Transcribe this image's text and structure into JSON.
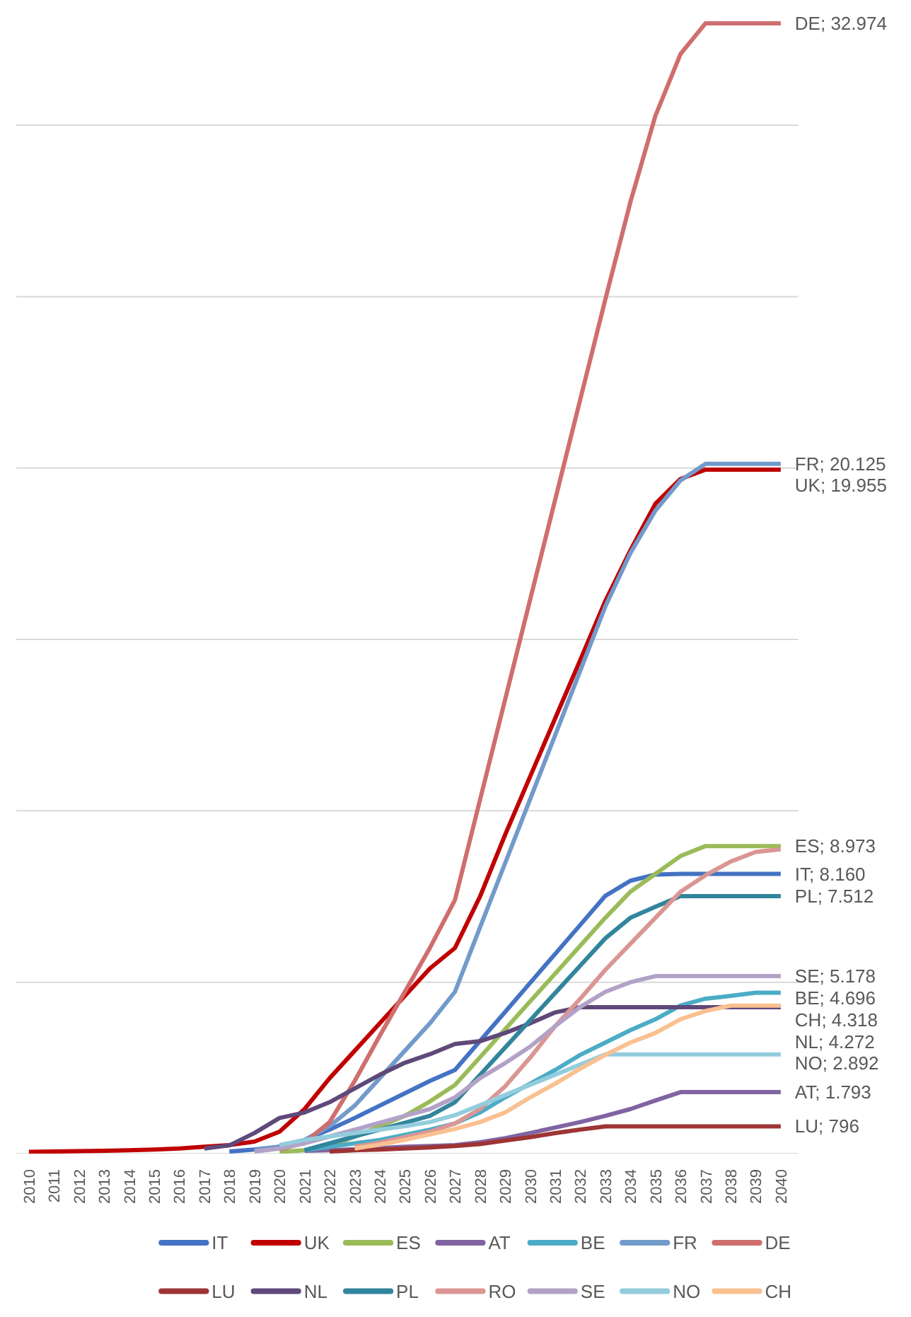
{
  "chart_data": {
    "type": "line",
    "categories": [
      "2010",
      "2011",
      "2012",
      "2013",
      "2014",
      "2015",
      "2016",
      "2017",
      "2018",
      "2019",
      "2020",
      "2021",
      "2022",
      "2023",
      "2024",
      "2025",
      "2026",
      "2027",
      "2028",
      "2029",
      "2030",
      "2031",
      "2032",
      "2033",
      "2034",
      "2035",
      "2036",
      "2037",
      "2038",
      "2039",
      "2040"
    ],
    "yticks": [
      {
        "value": 0,
        "label": null
      },
      {
        "value": 5000,
        "label": null
      },
      {
        "value": 10000,
        "label": null
      },
      {
        "value": 15000,
        "label": null
      },
      {
        "value": 20000,
        "label": null
      },
      {
        "value": 25000,
        "label": null
      },
      {
        "value": 30000,
        "label": null
      }
    ],
    "tick_labels": "x",
    "grid": "y",
    "legend": "bottom",
    "marker": "none",
    "line_style": "solid",
    "series": [
      {
        "name": "IT",
        "color": "#4472c4",
        "values": [
          null,
          null,
          null,
          null,
          null,
          null,
          null,
          null,
          60,
          120,
          200,
          400,
          700,
          1040,
          1400,
          1760,
          2120,
          2440,
          3287,
          4133,
          4980,
          5827,
          6673,
          7520,
          7960,
          8140,
          8160,
          8160,
          8160,
          8160,
          8160
        ],
        "value_labels": [
          null,
          null,
          null,
          null,
          null,
          null,
          null,
          null,
          null,
          null,
          null,
          null,
          null,
          null,
          null,
          null,
          null,
          null,
          null,
          null,
          null,
          null,
          null,
          null,
          null,
          null,
          null,
          null,
          null,
          null,
          "IT; 8.160"
        ]
      },
      {
        "name": "UK",
        "color": "#c00000",
        "values": [
          50,
          60,
          70,
          80,
          100,
          120,
          150,
          200,
          250,
          350,
          640,
          1300,
          2200,
          3000,
          3800,
          4600,
          5400,
          6000,
          7500,
          9300,
          11000,
          12700,
          14400,
          16120,
          17600,
          18960,
          19680,
          19955,
          19955,
          19955,
          19955
        ],
        "value_labels": [
          null,
          null,
          null,
          null,
          null,
          null,
          null,
          null,
          null,
          null,
          null,
          null,
          null,
          null,
          null,
          null,
          null,
          null,
          null,
          null,
          null,
          null,
          null,
          null,
          null,
          null,
          null,
          null,
          null,
          null,
          "UK; 19.955"
        ]
      },
      {
        "name": "ES",
        "color": "#9bbb59",
        "values": [
          null,
          null,
          null,
          null,
          null,
          null,
          null,
          null,
          null,
          null,
          50,
          100,
          200,
          500,
          800,
          1100,
          1520,
          2000,
          2813,
          3627,
          4440,
          5253,
          6067,
          6880,
          7640,
          8160,
          8680,
          8973,
          8973,
          8973,
          8973
        ],
        "value_labels": [
          null,
          null,
          null,
          null,
          null,
          null,
          null,
          null,
          null,
          null,
          null,
          null,
          null,
          null,
          null,
          null,
          null,
          null,
          null,
          null,
          null,
          null,
          null,
          null,
          null,
          null,
          null,
          null,
          null,
          null,
          "ES; 8.973"
        ]
      },
      {
        "name": "AT",
        "color": "#8064a2",
        "values": [
          null,
          null,
          null,
          null,
          null,
          null,
          null,
          null,
          null,
          null,
          null,
          80,
          100,
          130,
          160,
          200,
          220,
          250,
          330,
          450,
          600,
          760,
          920,
          1100,
          1300,
          1550,
          1793,
          1793,
          1793,
          1793,
          1793
        ],
        "value_labels": [
          null,
          null,
          null,
          null,
          null,
          null,
          null,
          null,
          null,
          null,
          null,
          null,
          null,
          null,
          null,
          null,
          null,
          null,
          null,
          null,
          null,
          null,
          null,
          null,
          null,
          null,
          null,
          null,
          null,
          null,
          "AT; 1.793"
        ]
      },
      {
        "name": "BE",
        "color": "#4bacc6",
        "values": [
          null,
          null,
          null,
          null,
          null,
          null,
          null,
          null,
          null,
          null,
          null,
          100,
          200,
          300,
          400,
          550,
          700,
          880,
          1200,
          1640,
          2040,
          2440,
          2880,
          3240,
          3600,
          3920,
          4320,
          4520,
          4600,
          4696,
          4696
        ],
        "value_labels": [
          null,
          null,
          null,
          null,
          null,
          null,
          null,
          null,
          null,
          null,
          null,
          null,
          null,
          null,
          null,
          null,
          null,
          null,
          null,
          null,
          null,
          null,
          null,
          null,
          null,
          null,
          null,
          null,
          null,
          null,
          "BE; 4.696"
        ]
      },
      {
        "name": "FR",
        "color": "#729aca",
        "values": [
          null,
          null,
          null,
          null,
          null,
          null,
          null,
          null,
          null,
          100,
          200,
          400,
          800,
          1400,
          2200,
          3000,
          3800,
          4720,
          6600,
          8470,
          10340,
          12210,
          14090,
          15960,
          17520,
          18760,
          19640,
          20125,
          20125,
          20125,
          20125
        ],
        "value_labels": [
          null,
          null,
          null,
          null,
          null,
          null,
          null,
          null,
          null,
          null,
          null,
          null,
          null,
          null,
          null,
          null,
          null,
          null,
          null,
          null,
          null,
          null,
          null,
          null,
          null,
          null,
          null,
          null,
          null,
          null,
          "FR; 20.125"
        ]
      },
      {
        "name": "DE",
        "color": "#cf6e6e",
        "values": [
          null,
          null,
          null,
          null,
          null,
          null,
          null,
          null,
          null,
          null,
          120,
          320,
          920,
          2120,
          3440,
          4720,
          6000,
          7400,
          10320,
          13240,
          16160,
          19080,
          22000,
          24920,
          27760,
          30280,
          32080,
          32974,
          32974,
          32974,
          32974
        ],
        "value_labels": [
          null,
          null,
          null,
          null,
          null,
          null,
          null,
          null,
          null,
          null,
          null,
          null,
          null,
          null,
          null,
          null,
          null,
          null,
          null,
          null,
          null,
          null,
          null,
          null,
          null,
          null,
          null,
          null,
          null,
          null,
          "DE; 32.974"
        ]
      },
      {
        "name": "LU",
        "color": "#9e3434",
        "values": [
          null,
          null,
          null,
          null,
          null,
          null,
          null,
          null,
          null,
          null,
          null,
          null,
          60,
          100,
          120,
          150,
          180,
          220,
          280,
          380,
          480,
          600,
          700,
          796,
          796,
          796,
          796,
          796,
          796,
          796,
          796
        ],
        "value_labels": [
          null,
          null,
          null,
          null,
          null,
          null,
          null,
          null,
          null,
          null,
          null,
          null,
          null,
          null,
          null,
          null,
          null,
          null,
          null,
          null,
          null,
          null,
          null,
          null,
          null,
          null,
          null,
          null,
          null,
          null,
          "LU; 796"
        ]
      },
      {
        "name": "NL",
        "color": "#5f497a",
        "values": [
          null,
          null,
          null,
          null,
          null,
          null,
          null,
          150,
          240,
          600,
          1040,
          1200,
          1500,
          1900,
          2300,
          2650,
          2900,
          3200,
          3280,
          3520,
          3800,
          4120,
          4272,
          4272,
          4272,
          4272,
          4272,
          4272,
          4272,
          4272,
          4272
        ],
        "value_labels": [
          null,
          null,
          null,
          null,
          null,
          null,
          null,
          null,
          null,
          null,
          null,
          null,
          null,
          null,
          null,
          null,
          null,
          null,
          null,
          null,
          null,
          null,
          null,
          null,
          null,
          null,
          null,
          null,
          null,
          null,
          "NL; 4.272"
        ]
      },
      {
        "name": "PL",
        "color": "#31859c",
        "values": [
          null,
          null,
          null,
          null,
          null,
          null,
          null,
          null,
          null,
          null,
          null,
          100,
          300,
          500,
          700,
          900,
          1100,
          1500,
          2297,
          3093,
          3890,
          4687,
          5483,
          6280,
          6880,
          7200,
          7512,
          7512,
          7512,
          7512,
          7512
        ],
        "value_labels": [
          null,
          null,
          null,
          null,
          null,
          null,
          null,
          null,
          null,
          null,
          null,
          null,
          null,
          null,
          null,
          null,
          null,
          null,
          null,
          null,
          null,
          null,
          null,
          null,
          null,
          null,
          null,
          null,
          null,
          null,
          "PL; 7.512"
        ]
      },
      {
        "name": "RO",
        "color": "#da9694",
        "values": [
          null,
          null,
          null,
          null,
          null,
          null,
          null,
          null,
          null,
          null,
          null,
          null,
          null,
          200,
          320,
          480,
          640,
          880,
          1300,
          1960,
          2800,
          3720,
          4520,
          5360,
          6120,
          6880,
          7640,
          8120,
          8520,
          8800,
          8880
        ]
      },
      {
        "name": "SE",
        "color": "#b3a2c7",
        "values": [
          null,
          null,
          null,
          null,
          null,
          null,
          null,
          null,
          null,
          60,
          150,
          300,
          500,
          700,
          900,
          1100,
          1300,
          1640,
          2200,
          2640,
          3120,
          3720,
          4280,
          4720,
          5000,
          5178,
          5178,
          5178,
          5178,
          5178,
          5178
        ],
        "value_labels": [
          null,
          null,
          null,
          null,
          null,
          null,
          null,
          null,
          null,
          null,
          null,
          null,
          null,
          null,
          null,
          null,
          null,
          null,
          null,
          null,
          null,
          null,
          null,
          null,
          null,
          null,
          null,
          null,
          null,
          null,
          "SE; 5.178"
        ]
      },
      {
        "name": "NO",
        "color": "#93cddd",
        "values": [
          null,
          null,
          null,
          null,
          null,
          null,
          null,
          null,
          null,
          null,
          250,
          400,
          500,
          600,
          700,
          800,
          920,
          1120,
          1415,
          1710,
          2005,
          2300,
          2597,
          2892,
          2892,
          2892,
          2892,
          2892,
          2892,
          2892,
          2892
        ],
        "value_labels": [
          null,
          null,
          null,
          null,
          null,
          null,
          null,
          null,
          null,
          null,
          null,
          null,
          null,
          null,
          null,
          null,
          null,
          null,
          null,
          null,
          null,
          null,
          null,
          null,
          null,
          null,
          null,
          null,
          null,
          null,
          "NO; 2.892"
        ]
      },
      {
        "name": "CH",
        "color": "#fac090",
        "values": [
          null,
          null,
          null,
          null,
          null,
          null,
          null,
          null,
          null,
          null,
          null,
          null,
          null,
          150,
          260,
          400,
          560,
          720,
          920,
          1200,
          1640,
          2040,
          2480,
          2880,
          3240,
          3520,
          3920,
          4160,
          4318,
          4318,
          4318
        ],
        "value_labels": [
          null,
          null,
          null,
          null,
          null,
          null,
          null,
          null,
          null,
          null,
          null,
          null,
          null,
          null,
          null,
          null,
          null,
          null,
          null,
          null,
          null,
          null,
          null,
          null,
          null,
          null,
          null,
          null,
          null,
          null,
          "CH; 4.318"
        ]
      }
    ]
  }
}
